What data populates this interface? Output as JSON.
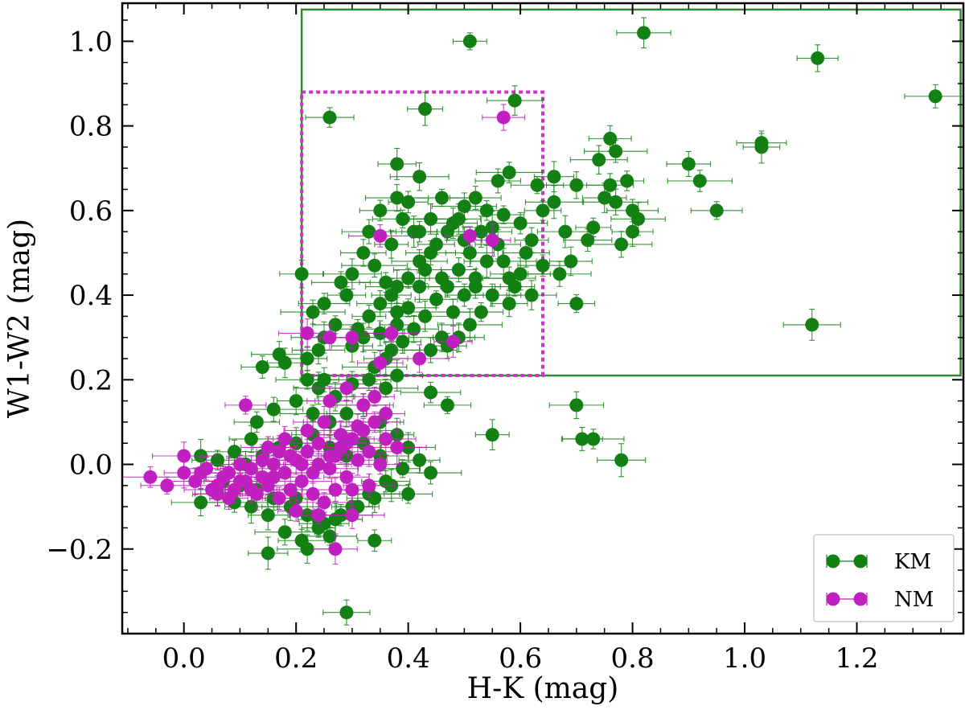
{
  "chart_data": {
    "type": "scatter",
    "title": "",
    "xlabel": "H-K (mag)",
    "ylabel": "W1-W2 (mag)",
    "xlim": [
      -0.11,
      1.39
    ],
    "ylim": [
      -0.4,
      1.09
    ],
    "xticks": [
      0.0,
      0.2,
      0.4,
      0.6,
      0.8,
      1.0,
      1.2
    ],
    "xtick_labels": [
      "0.0",
      "0.2",
      "0.4",
      "0.6",
      "0.8",
      "1.0",
      "1.2"
    ],
    "yticks": [
      -0.2,
      0.0,
      0.2,
      0.4,
      0.6,
      0.8,
      1.0
    ],
    "ytick_labels": [
      "−0.2",
      "0.0",
      "0.2",
      "0.4",
      "0.6",
      "0.8",
      "1.0"
    ],
    "legend": {
      "position": "bottom-right",
      "entries": [
        "KM",
        "NM"
      ]
    },
    "regions": [
      {
        "name": "KM selection box",
        "color": "#2e8b2e",
        "style": "solid",
        "x": [
          0.21,
          1.385
        ],
        "y": [
          0.21,
          1.075
        ]
      },
      {
        "name": "NM selection box",
        "color": "#cc33cc",
        "style": "dotted",
        "x": [
          0.21,
          0.64
        ],
        "y": [
          0.21,
          0.88
        ]
      }
    ],
    "series": [
      {
        "name": "KM",
        "color": "#138013",
        "points": [
          [
            0.51,
            1.0
          ],
          [
            0.82,
            1.02
          ],
          [
            1.13,
            0.96
          ],
          [
            1.34,
            0.87
          ],
          [
            0.26,
            0.82
          ],
          [
            0.43,
            0.84
          ],
          [
            0.59,
            0.86
          ],
          [
            0.76,
            0.77
          ],
          [
            0.77,
            0.74
          ],
          [
            1.03,
            0.76
          ],
          [
            1.03,
            0.75
          ],
          [
            0.74,
            0.72
          ],
          [
            0.9,
            0.71
          ],
          [
            0.92,
            0.67
          ],
          [
            0.95,
            0.6
          ],
          [
            0.38,
            0.71
          ],
          [
            0.42,
            0.68
          ],
          [
            0.56,
            0.67
          ],
          [
            0.58,
            0.69
          ],
          [
            0.63,
            0.66
          ],
          [
            0.66,
            0.68
          ],
          [
            0.7,
            0.66
          ],
          [
            0.76,
            0.66
          ],
          [
            0.79,
            0.67
          ],
          [
            0.81,
            0.58
          ],
          [
            0.8,
            0.55
          ],
          [
            0.78,
            0.52
          ],
          [
            0.72,
            0.53
          ],
          [
            0.73,
            0.56
          ],
          [
            0.68,
            0.55
          ],
          [
            0.69,
            0.48
          ],
          [
            0.67,
            0.45
          ],
          [
            0.64,
            0.47
          ],
          [
            0.7,
            0.38
          ],
          [
            1.12,
            0.33
          ],
          [
            0.21,
            0.45
          ],
          [
            0.23,
            0.36
          ],
          [
            0.25,
            0.38
          ],
          [
            0.29,
            0.4
          ],
          [
            0.3,
            0.45
          ],
          [
            0.32,
            0.5
          ],
          [
            0.34,
            0.47
          ],
          [
            0.36,
            0.43
          ],
          [
            0.37,
            0.4
          ],
          [
            0.38,
            0.36
          ],
          [
            0.35,
            0.38
          ],
          [
            0.33,
            0.35
          ],
          [
            0.31,
            0.32
          ],
          [
            0.3,
            0.28
          ],
          [
            0.32,
            0.3
          ],
          [
            0.35,
            0.31
          ],
          [
            0.38,
            0.33
          ],
          [
            0.4,
            0.37
          ],
          [
            0.42,
            0.42
          ],
          [
            0.43,
            0.46
          ],
          [
            0.44,
            0.5
          ],
          [
            0.45,
            0.52
          ],
          [
            0.47,
            0.55
          ],
          [
            0.49,
            0.58
          ],
          [
            0.5,
            0.61
          ],
          [
            0.52,
            0.63
          ],
          [
            0.54,
            0.6
          ],
          [
            0.55,
            0.56
          ],
          [
            0.56,
            0.52
          ],
          [
            0.57,
            0.48
          ],
          [
            0.58,
            0.44
          ],
          [
            0.59,
            0.42
          ],
          [
            0.6,
            0.45
          ],
          [
            0.61,
            0.5
          ],
          [
            0.62,
            0.53
          ],
          [
            0.6,
            0.57
          ],
          [
            0.57,
            0.59
          ],
          [
            0.53,
            0.55
          ],
          [
            0.51,
            0.5
          ],
          [
            0.49,
            0.46
          ],
          [
            0.47,
            0.42
          ],
          [
            0.45,
            0.39
          ],
          [
            0.43,
            0.35
          ],
          [
            0.41,
            0.32
          ],
          [
            0.39,
            0.29
          ],
          [
            0.37,
            0.27
          ],
          [
            0.36,
            0.25
          ],
          [
            0.34,
            0.23
          ],
          [
            0.48,
            0.36
          ],
          [
            0.5,
            0.4
          ],
          [
            0.52,
            0.44
          ],
          [
            0.54,
            0.48
          ],
          [
            0.46,
            0.3
          ],
          [
            0.44,
            0.27
          ],
          [
            0.4,
            0.62
          ],
          [
            0.39,
            0.58
          ],
          [
            0.41,
            0.55
          ],
          [
            0.37,
            0.52
          ],
          [
            0.33,
            0.55
          ],
          [
            0.35,
            0.6
          ],
          [
            0.46,
            0.63
          ],
          [
            0.48,
            0.57
          ],
          [
            0.5,
            0.53
          ],
          [
            0.42,
            0.48
          ],
          [
            0.4,
            0.44
          ],
          [
            0.38,
            0.42
          ],
          [
            0.62,
            0.4
          ],
          [
            0.58,
            0.38
          ],
          [
            0.55,
            0.4
          ],
          [
            0.53,
            0.36
          ],
          [
            0.51,
            0.33
          ],
          [
            0.49,
            0.3
          ],
          [
            0.47,
            0.28
          ],
          [
            0.28,
            0.43
          ],
          [
            0.27,
            0.33
          ],
          [
            0.25,
            0.3
          ],
          [
            0.24,
            0.27
          ],
          [
            0.22,
            0.25
          ],
          [
            0.44,
            0.17
          ],
          [
            0.47,
            0.14
          ],
          [
            0.55,
            0.07
          ],
          [
            0.7,
            0.14
          ],
          [
            0.71,
            0.06
          ],
          [
            0.73,
            0.06
          ],
          [
            0.78,
            0.01
          ],
          [
            0.18,
            0.24
          ],
          [
            0.17,
            0.26
          ],
          [
            0.14,
            0.23
          ],
          [
            0.22,
            0.2
          ],
          [
            0.24,
            0.18
          ],
          [
            0.27,
            0.16
          ],
          [
            0.3,
            0.19
          ],
          [
            0.33,
            0.2
          ],
          [
            0.36,
            0.18
          ],
          [
            0.38,
            0.21
          ],
          [
            0.2,
            0.15
          ],
          [
            0.16,
            0.13
          ],
          [
            0.13,
            0.1
          ],
          [
            0.23,
            0.12
          ],
          [
            0.26,
            0.1
          ],
          [
            0.29,
            0.12
          ],
          [
            0.32,
            0.14
          ],
          [
            0.35,
            0.1
          ],
          [
            0.38,
            0.07
          ],
          [
            0.4,
            0.04
          ],
          [
            0.42,
            0.01
          ],
          [
            0.44,
            -0.02
          ],
          [
            0.4,
            -0.07
          ],
          [
            0.37,
            -0.05
          ],
          [
            0.34,
            -0.08
          ],
          [
            0.31,
            -0.1
          ],
          [
            0.28,
            -0.12
          ],
          [
            0.25,
            -0.14
          ],
          [
            0.22,
            -0.12
          ],
          [
            0.19,
            -0.1
          ],
          [
            0.16,
            -0.08
          ],
          [
            0.13,
            -0.06
          ],
          [
            0.1,
            -0.05
          ],
          [
            0.07,
            -0.04
          ],
          [
            0.03,
            -0.09
          ],
          [
            0.06,
            -0.07
          ],
          [
            0.09,
            -0.09
          ],
          [
            0.12,
            -0.1
          ],
          [
            0.15,
            -0.12
          ],
          [
            0.18,
            -0.16
          ],
          [
            0.21,
            -0.18
          ],
          [
            0.24,
            -0.15
          ],
          [
            0.27,
            -0.13
          ],
          [
            0.3,
            -0.1
          ],
          [
            0.33,
            -0.07
          ],
          [
            0.36,
            -0.04
          ],
          [
            0.39,
            -0.01
          ],
          [
            0.2,
            0.05
          ],
          [
            0.23,
            0.07
          ],
          [
            0.26,
            0.04
          ],
          [
            0.29,
            0.02
          ],
          [
            0.32,
            0.05
          ],
          [
            0.35,
            0.02
          ],
          [
            0.12,
            0.06
          ],
          [
            0.09,
            0.03
          ],
          [
            0.06,
            0.01
          ],
          [
            0.03,
            0.02
          ],
          [
            0.08,
            -0.02
          ],
          [
            0.11,
            0.0
          ],
          [
            0.14,
            0.02
          ],
          [
            0.17,
            0.04
          ],
          [
            0.15,
            -0.21
          ],
          [
            0.22,
            -0.2
          ],
          [
            0.29,
            -0.35
          ],
          [
            0.34,
            -0.18
          ],
          [
            0.26,
            -0.17
          ],
          [
            0.24,
            -0.13
          ],
          [
            0.2,
            -0.08
          ],
          [
            0.25,
            0.2
          ],
          [
            0.42,
            0.55
          ],
          [
            0.46,
            0.44
          ],
          [
            0.44,
            0.58
          ],
          [
            0.38,
            0.63
          ],
          [
            0.52,
            0.42
          ],
          [
            0.64,
            0.6
          ],
          [
            0.66,
            0.62
          ],
          [
            0.75,
            0.63
          ],
          [
            0.77,
            0.62
          ],
          [
            0.8,
            0.6
          ]
        ]
      },
      {
        "name": "NM",
        "color": "#c020c0",
        "points": [
          [
            0.57,
            0.82
          ],
          [
            0.35,
            0.54
          ],
          [
            0.51,
            0.54
          ],
          [
            0.55,
            0.53
          ],
          [
            0.22,
            0.31
          ],
          [
            0.26,
            0.3
          ],
          [
            0.3,
            0.3
          ],
          [
            0.37,
            0.31
          ],
          [
            0.48,
            0.29
          ],
          [
            0.42,
            0.25
          ],
          [
            0.35,
            0.24
          ],
          [
            -0.06,
            -0.03
          ],
          [
            -0.03,
            -0.05
          ],
          [
            0.0,
            -0.02
          ],
          [
            0.02,
            -0.04
          ],
          [
            0.04,
            -0.01
          ],
          [
            0.06,
            -0.05
          ],
          [
            0.08,
            -0.02
          ],
          [
            0.1,
            -0.04
          ],
          [
            0.12,
            -0.01
          ],
          [
            0.14,
            -0.03
          ],
          [
            0.16,
            0.0
          ],
          [
            0.18,
            -0.02
          ],
          [
            0.2,
            0.01
          ],
          [
            0.22,
            0.03
          ],
          [
            0.24,
            0.05
          ],
          [
            0.26,
            0.02
          ],
          [
            0.28,
            0.04
          ],
          [
            0.3,
            0.06
          ],
          [
            0.32,
            0.08
          ],
          [
            0.34,
            0.1
          ],
          [
            0.36,
            0.12
          ],
          [
            0.31,
            0.01
          ],
          [
            0.29,
            -0.03
          ],
          [
            0.27,
            -0.06
          ],
          [
            0.25,
            -0.09
          ],
          [
            0.23,
            -0.07
          ],
          [
            0.21,
            -0.04
          ],
          [
            0.19,
            -0.06
          ],
          [
            0.17,
            -0.08
          ],
          [
            0.15,
            -0.05
          ],
          [
            0.13,
            -0.07
          ],
          [
            0.11,
            -0.04
          ],
          [
            0.09,
            -0.06
          ],
          [
            0.07,
            -0.03
          ],
          [
            0.05,
            -0.06
          ],
          [
            0.03,
            -0.02
          ],
          [
            0.0,
            0.02
          ],
          [
            0.06,
            -0.07
          ],
          [
            0.2,
            -0.11
          ],
          [
            0.24,
            -0.12
          ],
          [
            0.27,
            -0.2
          ],
          [
            0.3,
            -0.12
          ],
          [
            0.33,
            -0.05
          ],
          [
            0.35,
            0.0
          ],
          [
            0.38,
            0.04
          ],
          [
            0.26,
            0.15
          ],
          [
            0.29,
            0.18
          ],
          [
            0.32,
            0.14
          ],
          [
            0.34,
            0.16
          ],
          [
            0.36,
            0.06
          ],
          [
            0.22,
            0.08
          ],
          [
            0.18,
            0.06
          ],
          [
            0.15,
            0.04
          ],
          [
            0.11,
            0.14
          ],
          [
            0.25,
            0.1
          ],
          [
            0.28,
            0.07
          ],
          [
            0.31,
            0.09
          ],
          [
            0.23,
            -0.02
          ],
          [
            0.19,
            0.02
          ],
          [
            0.16,
            -0.03
          ],
          [
            0.14,
            0.01
          ],
          [
            0.21,
            0.0
          ],
          [
            0.26,
            -0.01
          ],
          [
            0.3,
            -0.06
          ],
          [
            0.33,
            0.03
          ],
          [
            0.12,
            -0.06
          ],
          [
            0.08,
            -0.08
          ],
          [
            0.1,
            0.0
          ],
          [
            0.17,
            0.03
          ],
          [
            0.24,
            0.0
          ],
          [
            0.27,
            0.02
          ],
          [
            0.29,
            0.05
          ]
        ]
      }
    ]
  }
}
